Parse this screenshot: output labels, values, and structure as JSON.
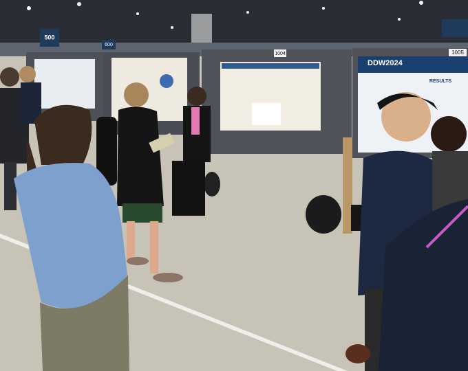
{
  "signs": {
    "hall_sign": "500",
    "hall_sign_lower": "600",
    "board_1004": "1004",
    "board_1005": "1005"
  },
  "poster": {
    "logo": "DDW2024",
    "section": "RESULTS"
  }
}
